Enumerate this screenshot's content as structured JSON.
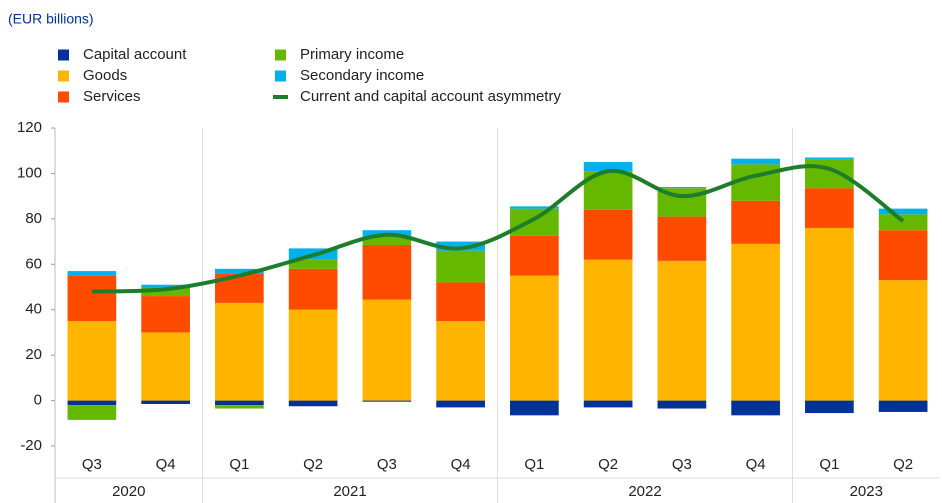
{
  "chart_data": {
    "type": "stacked-bar-line",
    "subtitle": "(EUR billions)",
    "categories": [
      "Q3",
      "Q4",
      "Q1",
      "Q2",
      "Q3",
      "Q4",
      "Q1",
      "Q2",
      "Q3",
      "Q4",
      "Q1",
      "Q2"
    ],
    "groups": [
      {
        "label": "2020",
        "size": 2
      },
      {
        "label": "2021",
        "size": 4
      },
      {
        "label": "2022",
        "size": 4
      },
      {
        "label": "2023",
        "size": 2
      }
    ],
    "series": [
      {
        "name": "Capital account",
        "color": "#003299",
        "kind": "bar",
        "values": [
          -2,
          -1.5,
          -2,
          -2.5,
          -0.5,
          -3,
          -6.5,
          -3,
          -3.5,
          -6.5,
          -5.5,
          -5
        ]
      },
      {
        "name": "Goods",
        "color": "#ffb400",
        "kind": "bar",
        "values": [
          35,
          30,
          43,
          40,
          44.5,
          35,
          55,
          62,
          61.5,
          69,
          76,
          53
        ]
      },
      {
        "name": "Services",
        "color": "#ff4b00",
        "kind": "bar",
        "values": [
          20,
          16,
          13,
          18,
          24,
          17,
          17.5,
          22,
          19.5,
          19,
          17.5,
          22
        ]
      },
      {
        "name": "Primary income",
        "color": "#65b800",
        "kind": "bar",
        "values": [
          -6.5,
          4,
          -1.5,
          4,
          4,
          14,
          12,
          17,
          12.5,
          16,
          12.5,
          7
        ]
      },
      {
        "name": "Secondary income",
        "color": "#00b1ea",
        "kind": "bar",
        "values": [
          2,
          1,
          2,
          5,
          2.5,
          4,
          1,
          4,
          0.5,
          2.5,
          1,
          2.5
        ]
      },
      {
        "name": "Current and capital account asymmetry",
        "color": "#1e7d2a",
        "kind": "line",
        "values": [
          48,
          49,
          55,
          64,
          73,
          67,
          80,
          101,
          90,
          99,
          102,
          79
        ]
      }
    ],
    "ylim": [
      -20,
      120
    ],
    "yticks": [
      -20,
      0,
      20,
      40,
      60,
      80,
      100,
      120
    ],
    "grid": false
  }
}
